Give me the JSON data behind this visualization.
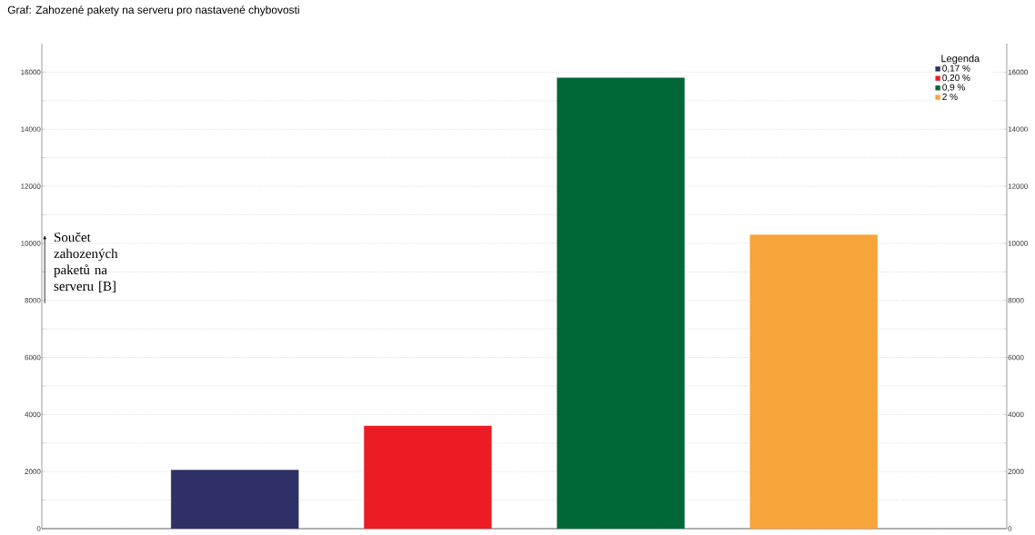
{
  "chart_data": {
    "type": "bar",
    "title": "Graf: Zahozené pakety na serveru pro nastavené chybovosti",
    "ylabel": "Součet zahozených paketů na serveru [B]",
    "legend_title": "Legenda",
    "categories": [
      null,
      null,
      null,
      null
    ],
    "series": [
      {
        "name": "0,17 %",
        "color": "#2e3066",
        "values": [
          2050,
          null,
          null,
          null
        ]
      },
      {
        "name": "0,20 %",
        "color": "#ec1c24",
        "values": [
          null,
          3600,
          null,
          null
        ]
      },
      {
        "name": "0,9 %",
        "color": "#006837",
        "values": [
          null,
          null,
          15800,
          null
        ]
      },
      {
        "name": "2 %",
        "color": "#f7a43b",
        "values": [
          null,
          null,
          null,
          10300
        ]
      }
    ],
    "ylim": [
      0,
      17000
    ],
    "yticks": [
      0,
      {
        "value": 1000,
        "label": null
      },
      2000,
      {
        "value": 3000,
        "label": null
      },
      4000,
      {
        "value": 5000,
        "label": null
      },
      6000,
      {
        "value": 7000,
        "label": null
      },
      8000,
      {
        "value": 9000,
        "label": null
      },
      10000,
      {
        "value": 11000,
        "label": null
      },
      12000,
      {
        "value": 13000,
        "label": null
      },
      14000,
      {
        "value": 15000,
        "label": null
      },
      16000
    ],
    "y2lim": [
      0,
      17000
    ],
    "y2ticks": [
      0,
      {
        "value": 1000,
        "label": null
      },
      2000,
      {
        "value": 3000,
        "label": null
      },
      4000,
      {
        "value": 5000,
        "label": null
      },
      6000,
      {
        "value": 7000,
        "label": null
      },
      8000,
      {
        "value": 9000,
        "label": null
      },
      10000,
      {
        "value": 11000,
        "label": null
      },
      12000,
      {
        "value": 13000,
        "label": null
      },
      14000,
      {
        "value": 15000,
        "label": null
      },
      16000
    ],
    "grid": "y",
    "legend": "top right"
  }
}
